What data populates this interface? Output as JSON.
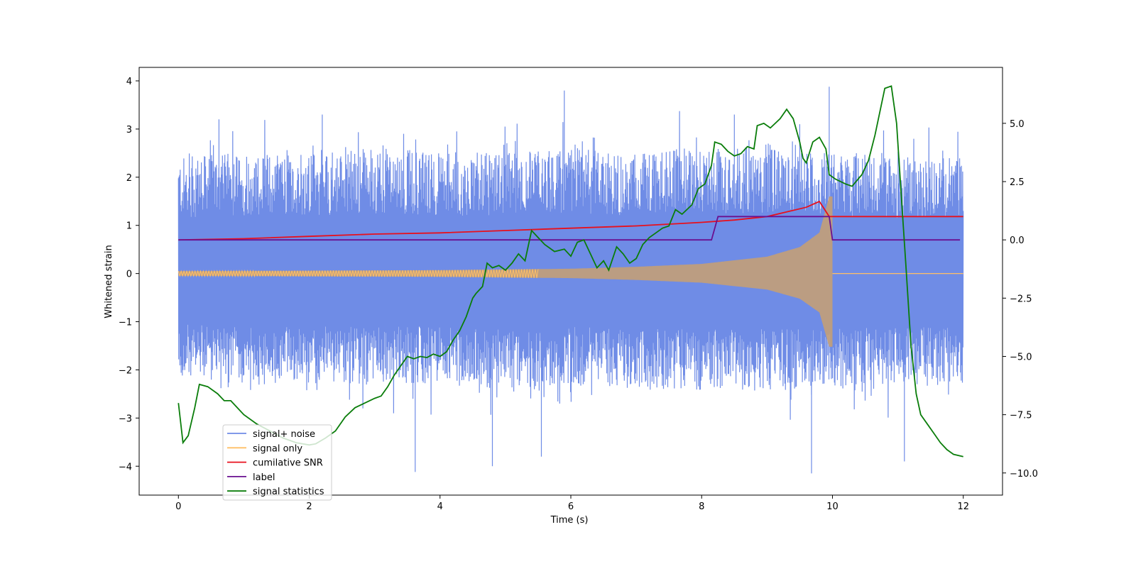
{
  "chart_data": {
    "type": "line",
    "title": "",
    "xlabel": "Time (s)",
    "ylabel": "Whitened strain",
    "y2label": "",
    "xlim": [
      -0.6,
      12.6
    ],
    "ylim": [
      -4.6,
      4.28
    ],
    "y2lim": [
      -10.95,
      7.4
    ],
    "xticks": [
      0,
      2,
      4,
      6,
      8,
      10,
      12
    ],
    "yticks": [
      -4,
      -3,
      -2,
      -1,
      0,
      1,
      2,
      3,
      4
    ],
    "y2ticks": [
      -10.0,
      -7.5,
      -5.0,
      -2.5,
      0.0,
      2.5,
      5.0
    ],
    "xtick_labels": [
      "0",
      "2",
      "4",
      "6",
      "8",
      "10",
      "12"
    ],
    "ytick_labels": [
      "−4",
      "−3",
      "−2",
      "−1",
      "0",
      "1",
      "2",
      "3",
      "4"
    ],
    "y2tick_labels": [
      "−10.0",
      "−7.5",
      "−5.0",
      "−2.5",
      "0.0",
      "2.5",
      "5.0"
    ],
    "grid": false,
    "legend_position": "lower-left",
    "series": [
      {
        "name": "signal+ noise",
        "color": "#6f8ce6",
        "axis": "left",
        "kind": "noise",
        "t_range": [
          0,
          12
        ],
        "envelope_upper": [
          [
            0,
            2.3
          ],
          [
            1,
            2.4
          ],
          [
            2,
            2.4
          ],
          [
            3,
            2.5
          ],
          [
            4,
            2.4
          ],
          [
            5,
            2.4
          ],
          [
            6,
            2.5
          ],
          [
            7,
            2.4
          ],
          [
            8,
            2.5
          ],
          [
            9,
            2.5
          ],
          [
            10,
            2.4
          ],
          [
            11,
            2.3
          ],
          [
            12,
            2.3
          ]
        ],
        "envelope_lower": [
          [
            0,
            -2.1
          ],
          [
            1,
            -2.2
          ],
          [
            2,
            -2.2
          ],
          [
            3,
            -2.2
          ],
          [
            4,
            -2.2
          ],
          [
            5,
            -2.3
          ],
          [
            6,
            -2.2
          ],
          [
            7,
            -2.3
          ],
          [
            8,
            -2.3
          ],
          [
            9,
            -2.3
          ],
          [
            10,
            -2.3
          ],
          [
            11,
            -2.2
          ],
          [
            12,
            -2.2
          ]
        ],
        "peaks": [
          [
            0.62,
            3.2
          ],
          [
            2.2,
            3.3
          ],
          [
            3.62,
            -4.12
          ],
          [
            5.9,
            3.8
          ],
          [
            4.8,
            -4.0
          ],
          [
            5.55,
            -3.8
          ],
          [
            9.68,
            -4.15
          ],
          [
            9.95,
            3.88
          ],
          [
            11.1,
            -3.9
          ],
          [
            8.5,
            3.3
          ],
          [
            9.5,
            3.1
          ]
        ]
      },
      {
        "name": "signal only",
        "color": "#ffbf66",
        "axis": "left",
        "kind": "chirp",
        "t_range": [
          0,
          10
        ],
        "chirp_amplitude": [
          [
            0,
            0.05
          ],
          [
            2,
            0.06
          ],
          [
            4,
            0.07
          ],
          [
            6,
            0.1
          ],
          [
            7,
            0.14
          ],
          [
            8,
            0.2
          ],
          [
            9,
            0.35
          ],
          [
            9.5,
            0.55
          ],
          [
            9.8,
            0.85
          ],
          [
            9.95,
            1.6
          ]
        ]
      },
      {
        "name": "cumilative SNR",
        "color": "#e8101c",
        "axis": "right",
        "points": [
          [
            0,
            0.0
          ],
          [
            1,
            0.05
          ],
          [
            2,
            0.15
          ],
          [
            3,
            0.25
          ],
          [
            4,
            0.3
          ],
          [
            5,
            0.4
          ],
          [
            6,
            0.5
          ],
          [
            7,
            0.6
          ],
          [
            8,
            0.75
          ],
          [
            8.5,
            0.85
          ],
          [
            9.0,
            1.0
          ],
          [
            9.3,
            1.2
          ],
          [
            9.6,
            1.4
          ],
          [
            9.8,
            1.65
          ],
          [
            9.95,
            1.0
          ],
          [
            9.96,
            1.0
          ],
          [
            12,
            1.0
          ]
        ]
      },
      {
        "name": "label",
        "color": "#6a1090",
        "axis": "right",
        "points": [
          [
            0,
            0.0
          ],
          [
            8.15,
            0.0
          ],
          [
            8.25,
            1.0
          ],
          [
            9.95,
            1.0
          ],
          [
            10.0,
            0.0
          ],
          [
            11.95,
            0.0
          ]
        ]
      },
      {
        "name": "signal statistics",
        "color": "#0a7d0a",
        "axis": "right",
        "points": [
          [
            0,
            -7.0
          ],
          [
            0.07,
            -8.7
          ],
          [
            0.15,
            -8.4
          ],
          [
            0.25,
            -7.2
          ],
          [
            0.32,
            -6.2
          ],
          [
            0.45,
            -6.3
          ],
          [
            0.6,
            -6.6
          ],
          [
            0.7,
            -6.9
          ],
          [
            0.8,
            -6.9
          ],
          [
            0.9,
            -7.2
          ],
          [
            1.0,
            -7.5
          ],
          [
            1.2,
            -7.9
          ],
          [
            1.4,
            -8.2
          ],
          [
            1.6,
            -8.5
          ],
          [
            1.8,
            -8.7
          ],
          [
            2.0,
            -8.8
          ],
          [
            2.1,
            -8.75
          ],
          [
            2.25,
            -8.5
          ],
          [
            2.4,
            -8.2
          ],
          [
            2.55,
            -7.6
          ],
          [
            2.7,
            -7.2
          ],
          [
            2.85,
            -7.0
          ],
          [
            3.0,
            -6.8
          ],
          [
            3.1,
            -6.7
          ],
          [
            3.2,
            -6.3
          ],
          [
            3.3,
            -5.8
          ],
          [
            3.4,
            -5.4
          ],
          [
            3.5,
            -5.0
          ],
          [
            3.6,
            -5.1
          ],
          [
            3.7,
            -5.0
          ],
          [
            3.8,
            -5.05
          ],
          [
            3.9,
            -4.9
          ],
          [
            4.0,
            -5.0
          ],
          [
            4.1,
            -4.8
          ],
          [
            4.2,
            -4.3
          ],
          [
            4.3,
            -3.9
          ],
          [
            4.4,
            -3.3
          ],
          [
            4.5,
            -2.5
          ],
          [
            4.55,
            -2.3
          ],
          [
            4.65,
            -2.0
          ],
          [
            4.72,
            -1.0
          ],
          [
            4.8,
            -1.2
          ],
          [
            4.9,
            -1.1
          ],
          [
            5.0,
            -1.3
          ],
          [
            5.1,
            -1.0
          ],
          [
            5.2,
            -0.6
          ],
          [
            5.3,
            -0.9
          ],
          [
            5.4,
            0.4
          ],
          [
            5.5,
            0.1
          ],
          [
            5.6,
            -0.2
          ],
          [
            5.75,
            -0.5
          ],
          [
            5.9,
            -0.4
          ],
          [
            6.0,
            -0.7
          ],
          [
            6.1,
            -0.1
          ],
          [
            6.2,
            0.0
          ],
          [
            6.3,
            -0.6
          ],
          [
            6.4,
            -1.2
          ],
          [
            6.5,
            -0.9
          ],
          [
            6.58,
            -1.3
          ],
          [
            6.7,
            -0.3
          ],
          [
            6.8,
            -0.6
          ],
          [
            6.9,
            -1.0
          ],
          [
            7.0,
            -0.8
          ],
          [
            7.1,
            -0.2
          ],
          [
            7.2,
            0.1
          ],
          [
            7.3,
            0.3
          ],
          [
            7.4,
            0.5
          ],
          [
            7.5,
            0.6
          ],
          [
            7.6,
            1.3
          ],
          [
            7.7,
            1.1
          ],
          [
            7.85,
            1.5
          ],
          [
            7.95,
            2.2
          ],
          [
            8.05,
            2.4
          ],
          [
            8.15,
            3.2
          ],
          [
            8.2,
            4.2
          ],
          [
            8.3,
            4.1
          ],
          [
            8.4,
            3.8
          ],
          [
            8.5,
            3.6
          ],
          [
            8.6,
            3.7
          ],
          [
            8.7,
            4.0
          ],
          [
            8.8,
            3.9
          ],
          [
            8.85,
            4.9
          ],
          [
            8.95,
            5.0
          ],
          [
            9.05,
            4.8
          ],
          [
            9.2,
            5.2
          ],
          [
            9.3,
            5.6
          ],
          [
            9.4,
            5.2
          ],
          [
            9.5,
            4.2
          ],
          [
            9.55,
            3.5
          ],
          [
            9.6,
            3.3
          ],
          [
            9.7,
            4.2
          ],
          [
            9.8,
            4.4
          ],
          [
            9.9,
            3.9
          ],
          [
            9.95,
            2.8
          ],
          [
            10.05,
            2.6
          ],
          [
            10.2,
            2.4
          ],
          [
            10.3,
            2.3
          ],
          [
            10.45,
            2.8
          ],
          [
            10.55,
            3.4
          ],
          [
            10.65,
            4.5
          ],
          [
            10.8,
            6.5
          ],
          [
            10.9,
            6.6
          ],
          [
            10.98,
            5.0
          ],
          [
            11.05,
            2.0
          ],
          [
            11.12,
            -1.0
          ],
          [
            11.2,
            -4.5
          ],
          [
            11.28,
            -6.6
          ],
          [
            11.35,
            -7.5
          ],
          [
            11.45,
            -7.9
          ],
          [
            11.55,
            -8.3
          ],
          [
            11.65,
            -8.7
          ],
          [
            11.75,
            -9.0
          ],
          [
            11.85,
            -9.2
          ],
          [
            12.0,
            -9.3
          ]
        ]
      }
    ]
  }
}
